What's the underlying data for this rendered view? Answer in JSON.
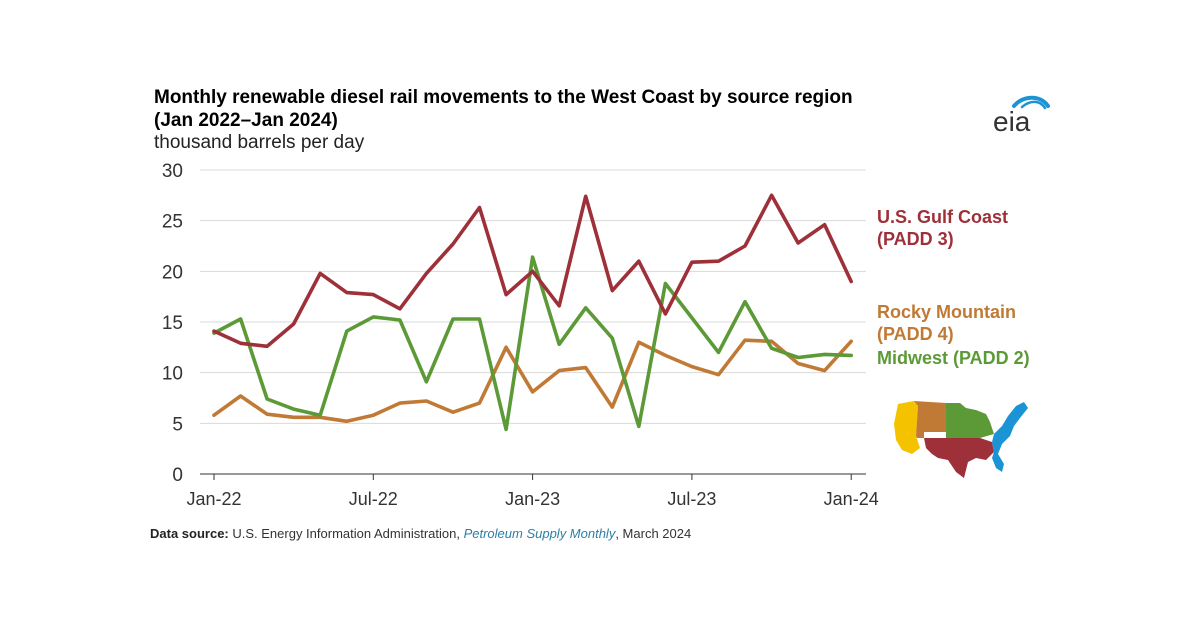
{
  "chart_data": {
    "type": "line",
    "title": "Monthly renewable diesel rail movements to the West Coast by source region",
    "title_line2": "(Jan 2022–Jan 2024)",
    "ylabel": "thousand barrels per day",
    "xlabel": "",
    "ylim": [
      0,
      30
    ],
    "yticks": [
      0,
      5,
      10,
      15,
      20,
      25,
      30
    ],
    "x": [
      "2022-01",
      "2022-02",
      "2022-03",
      "2022-04",
      "2022-05",
      "2022-06",
      "2022-07",
      "2022-08",
      "2022-09",
      "2022-10",
      "2022-11",
      "2022-12",
      "2023-01",
      "2023-02",
      "2023-03",
      "2023-04",
      "2023-05",
      "2023-06",
      "2023-07",
      "2023-08",
      "2023-09",
      "2023-10",
      "2023-11",
      "2023-12",
      "2024-01"
    ],
    "xtick_labels": [
      "Jan-22",
      "Jul-22",
      "Jan-23",
      "Jul-23",
      "Jan-24"
    ],
    "grid": "horizontal",
    "legend": "right",
    "series": [
      {
        "name": "U.S. Gulf Coast (PADD 3)",
        "label_lines": [
          "U.S. Gulf Coast",
          "(PADD 3)"
        ],
        "color": "#9e3039",
        "values": [
          14.1,
          12.9,
          12.6,
          14.8,
          19.8,
          17.9,
          17.7,
          16.3,
          19.8,
          22.7,
          26.3,
          17.7,
          20.0,
          16.6,
          27.4,
          18.1,
          21.0,
          15.8,
          20.9,
          21.0,
          22.5,
          27.5,
          22.8,
          24.6,
          19.0
        ]
      },
      {
        "name": "Rocky Mountain (PADD 4)",
        "label_lines": [
          "Rocky Mountain",
          "(PADD 4)"
        ],
        "color": "#c07a35",
        "values": [
          5.8,
          7.7,
          5.9,
          5.6,
          5.6,
          5.2,
          5.8,
          7.0,
          7.2,
          6.1,
          7.0,
          12.5,
          8.1,
          10.2,
          10.5,
          6.6,
          13.0,
          11.7,
          10.6,
          9.8,
          13.2,
          13.1,
          10.9,
          10.2,
          13.1
        ]
      },
      {
        "name": "Midwest (PADD 2)",
        "label_lines": [
          "Midwest (PADD 2)"
        ],
        "color": "#5c9a37",
        "values": [
          13.9,
          15.3,
          7.4,
          6.4,
          5.8,
          14.1,
          15.5,
          15.2,
          9.1,
          15.3,
          15.3,
          4.4,
          21.4,
          12.8,
          16.4,
          13.4,
          4.7,
          18.8,
          15.4,
          12.0,
          17.0,
          12.4,
          11.5,
          11.8,
          11.7
        ]
      }
    ]
  },
  "source": {
    "prefix": "Data source:",
    "text1": " U.S. Energy Information Administration, ",
    "publication": "Petroleum Supply Monthly",
    "text2": ", March 2024"
  },
  "logo_text": "eia",
  "colors": {
    "gulf": "#9e3039",
    "rocky": "#c07a35",
    "midwest": "#5c9a37",
    "grid": "#d9d9d9",
    "east": "#1a94d4",
    "west": "#f5c200"
  }
}
